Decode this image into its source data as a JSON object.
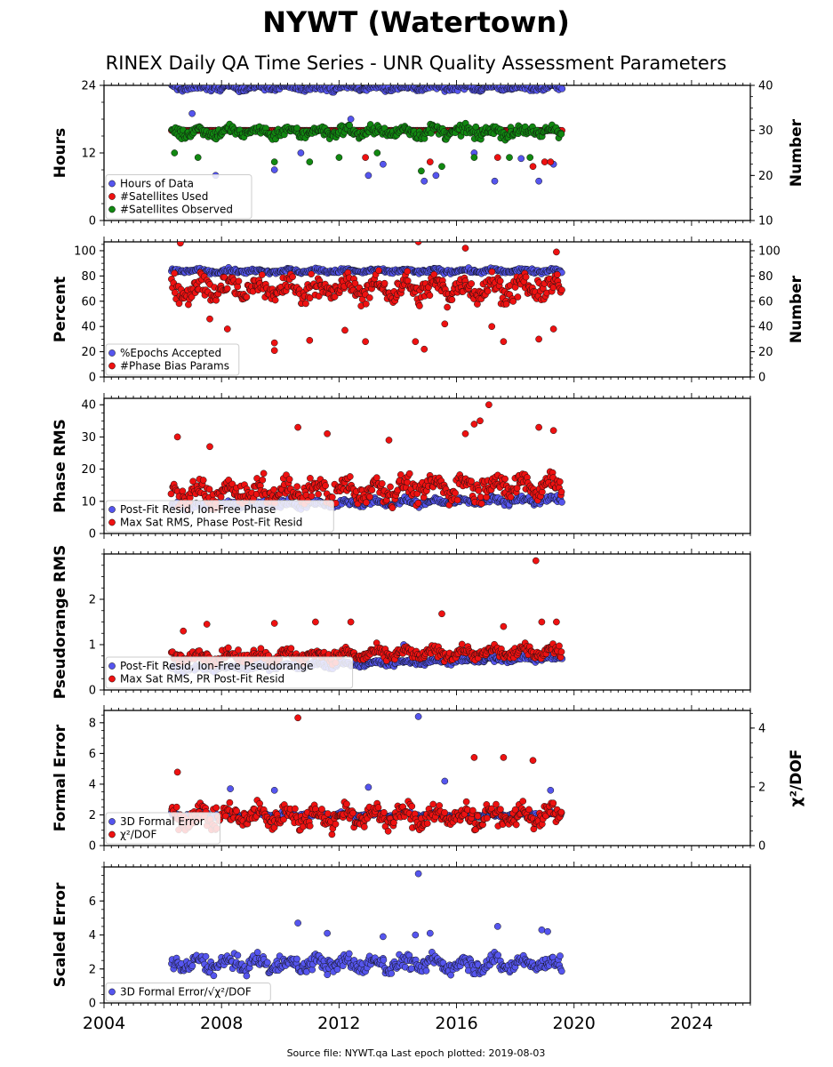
{
  "header": {
    "title": "NYWT (Watertown)",
    "subtitle": "RINEX Daily QA Time Series - UNR Quality Assessment Parameters"
  },
  "footer": {
    "source": "Source file: NYWT.qa Last epoch plotted: 2019-08-03"
  },
  "colors": {
    "blue": "#5555ee",
    "red": "#ee1111",
    "green": "#118811"
  },
  "chart_data": [
    {
      "type": "scatter",
      "ylabel": "Hours",
      "y2label": "Number",
      "ylim": [
        0,
        24
      ],
      "yticks": [
        0,
        12,
        24
      ],
      "y2lim": [
        10,
        40
      ],
      "y2ticks": [
        10,
        20,
        30,
        40
      ],
      "xlim": [
        2004,
        2026
      ],
      "legend_position": "lower-left",
      "series": [
        {
          "name": "Hours of Data",
          "color": "#5555ee",
          "axis": "left",
          "center": 23.6,
          "spread": 0.5,
          "outliers": [
            [
              2006.6,
              16
            ],
            [
              2007.0,
              19
            ],
            [
              2007.8,
              8
            ],
            [
              2009.8,
              9
            ],
            [
              2010.7,
              12
            ],
            [
              2012.4,
              18
            ],
            [
              2013.0,
              8
            ],
            [
              2013.5,
              10
            ],
            [
              2014.9,
              7
            ],
            [
              2015.3,
              8
            ],
            [
              2016.6,
              12
            ],
            [
              2017.3,
              7
            ],
            [
              2018.2,
              11
            ],
            [
              2018.8,
              7
            ],
            [
              2019.3,
              10
            ]
          ]
        },
        {
          "name": "#Satellites Used",
          "color": "#ee1111",
          "axis": "right",
          "center": 30,
          "spread": 0,
          "outliers": [
            [
              2012.9,
              24
            ],
            [
              2015.1,
              23
            ],
            [
              2017.4,
              24
            ],
            [
              2019.0,
              23
            ],
            [
              2018.6,
              22
            ],
            [
              2019.2,
              23
            ]
          ]
        },
        {
          "name": "#Satellites Observed",
          "color": "#118811",
          "axis": "right",
          "center": 29.7,
          "spread": 1.2,
          "outliers": [
            [
              2006.4,
              25
            ],
            [
              2007.2,
              24
            ],
            [
              2009.8,
              23
            ],
            [
              2011.0,
              23
            ],
            [
              2012.0,
              24
            ],
            [
              2013.3,
              25
            ],
            [
              2014.8,
              21
            ],
            [
              2015.5,
              22
            ],
            [
              2016.6,
              24
            ],
            [
              2017.8,
              24
            ],
            [
              2018.5,
              24
            ]
          ]
        }
      ]
    },
    {
      "type": "scatter",
      "ylabel": "Percent",
      "y2label": "Number",
      "ylim": [
        0,
        107
      ],
      "yticks": [
        0,
        20,
        40,
        60,
        80,
        100
      ],
      "y2lim": [
        0,
        107
      ],
      "y2ticks": [
        0,
        20,
        40,
        60,
        80,
        100
      ],
      "xlim": [
        2004,
        2026
      ],
      "legend_position": "lower-left",
      "series": [
        {
          "name": "%Epochs Accepted",
          "color": "#5555ee",
          "axis": "left",
          "center": 84,
          "spread": 1.5,
          "outliers": []
        },
        {
          "name": "#Phase Bias Params",
          "color": "#ee1111",
          "axis": "right",
          "center": 70,
          "spread": 9,
          "outliers": [
            [
              2006.6,
              106
            ],
            [
              2007.6,
              46
            ],
            [
              2008.2,
              38
            ],
            [
              2009.8,
              27
            ],
            [
              2009.8,
              21
            ],
            [
              2011.0,
              29
            ],
            [
              2012.2,
              37
            ],
            [
              2012.9,
              28
            ],
            [
              2014.6,
              28
            ],
            [
              2014.7,
              107
            ],
            [
              2014.9,
              22
            ],
            [
              2015.6,
              42
            ],
            [
              2016.3,
              102
            ],
            [
              2017.2,
              40
            ],
            [
              2017.6,
              28
            ],
            [
              2018.8,
              30
            ],
            [
              2019.3,
              38
            ],
            [
              2019.4,
              99
            ]
          ]
        }
      ]
    },
    {
      "type": "scatter",
      "ylabel": "Phase RMS",
      "ylim": [
        0,
        42
      ],
      "yticks": [
        0,
        10,
        20,
        30,
        40
      ],
      "xlim": [
        2004,
        2026
      ],
      "legend_position": "lower-left",
      "series": [
        {
          "name": "Post-Fit Resid, Ion-Free Phase",
          "color": "#5555ee",
          "axis": "left",
          "center": 8.5,
          "spread": 1,
          "trend": 0.15,
          "outliers": []
        },
        {
          "name": "Max Sat RMS, Phase Post-Fit Resid",
          "color": "#ee1111",
          "axis": "left",
          "center": 12,
          "spread": 3.5,
          "trend": 0.25,
          "outliers": [
            [
              2006.5,
              30
            ],
            [
              2007.6,
              27
            ],
            [
              2010.6,
              33
            ],
            [
              2011.6,
              31
            ],
            [
              2013.7,
              29
            ],
            [
              2016.3,
              31
            ],
            [
              2016.6,
              34
            ],
            [
              2016.8,
              35
            ],
            [
              2017.1,
              40
            ],
            [
              2018.8,
              33
            ],
            [
              2019.3,
              32
            ]
          ]
        }
      ]
    },
    {
      "type": "scatter",
      "ylabel": "Pseudorange RMS",
      "ylim": [
        0,
        3
      ],
      "yticks": [
        0,
        1,
        2
      ],
      "xlim": [
        2004,
        2026
      ],
      "legend_position": "lower-left",
      "series": [
        {
          "name": "Post-Fit Resid, Ion-Free Pseudorange",
          "color": "#5555ee",
          "axis": "left",
          "center": 0.45,
          "spread": 0.06,
          "trend": 0.02,
          "outliers": [
            [
              2014.2,
              1.0
            ]
          ]
        },
        {
          "name": "Max Sat RMS, PR Post-Fit Resid",
          "color": "#ee1111",
          "axis": "left",
          "center": 0.72,
          "spread": 0.12,
          "trend": 0.01,
          "outliers": [
            [
              2006.7,
              1.3
            ],
            [
              2007.5,
              1.45
            ],
            [
              2009.8,
              1.47
            ],
            [
              2011.2,
              1.5
            ],
            [
              2012.4,
              1.5
            ],
            [
              2015.5,
              1.68
            ],
            [
              2017.6,
              1.4
            ],
            [
              2018.7,
              2.85
            ],
            [
              2018.9,
              1.5
            ],
            [
              2019.4,
              1.5
            ]
          ]
        }
      ]
    },
    {
      "type": "scatter",
      "ylabel": "Formal Error",
      "y2label": "χ²/DOF",
      "ylim": [
        0,
        8.8
      ],
      "yticks": [
        0,
        2,
        4,
        6,
        8
      ],
      "y2lim": [
        0,
        4.6
      ],
      "y2ticks": [
        0,
        2,
        4
      ],
      "xlim": [
        2004,
        2026
      ],
      "legend_position": "lower-left",
      "series": [
        {
          "name": "3D Formal Error",
          "color": "#5555ee",
          "axis": "left",
          "center": 2.0,
          "spread": 0.15,
          "outliers": [
            [
              2008.3,
              3.7
            ],
            [
              2009.8,
              3.6
            ],
            [
              2013.0,
              3.8
            ],
            [
              2014.7,
              8.4
            ],
            [
              2015.6,
              4.2
            ],
            [
              2019.2,
              3.6
            ]
          ]
        },
        {
          "name": "χ²/DOF",
          "color": "#ee1111",
          "axis": "right",
          "center": 1.0,
          "spread": 0.35,
          "outliers": [
            [
              2010.6,
              4.35
            ],
            [
              2006.5,
              2.5
            ],
            [
              2016.6,
              3.0
            ],
            [
              2017.6,
              3.0
            ],
            [
              2018.6,
              2.9
            ]
          ]
        }
      ]
    },
    {
      "type": "scatter",
      "ylabel": "Scaled Error",
      "ylim": [
        0,
        8
      ],
      "yticks": [
        0,
        2,
        4,
        6
      ],
      "xlim": [
        2004,
        2026
      ],
      "xticks": [
        2004,
        2008,
        2012,
        2016,
        2020,
        2024
      ],
      "legend_position": "lower-left",
      "series": [
        {
          "name": "3D Formal Error/√χ²/DOF",
          "color": "#5555ee",
          "axis": "left",
          "center": 2.3,
          "spread": 0.45,
          "outliers": [
            [
              2010.6,
              4.7
            ],
            [
              2011.6,
              4.1
            ],
            [
              2013.5,
              3.9
            ],
            [
              2014.7,
              7.6
            ],
            [
              2014.6,
              4.0
            ],
            [
              2015.1,
              4.1
            ],
            [
              2017.4,
              4.5
            ],
            [
              2018.9,
              4.3
            ],
            [
              2019.1,
              4.2
            ]
          ]
        }
      ]
    }
  ],
  "start_year": 2006.3,
  "end_year": 2019.58
}
